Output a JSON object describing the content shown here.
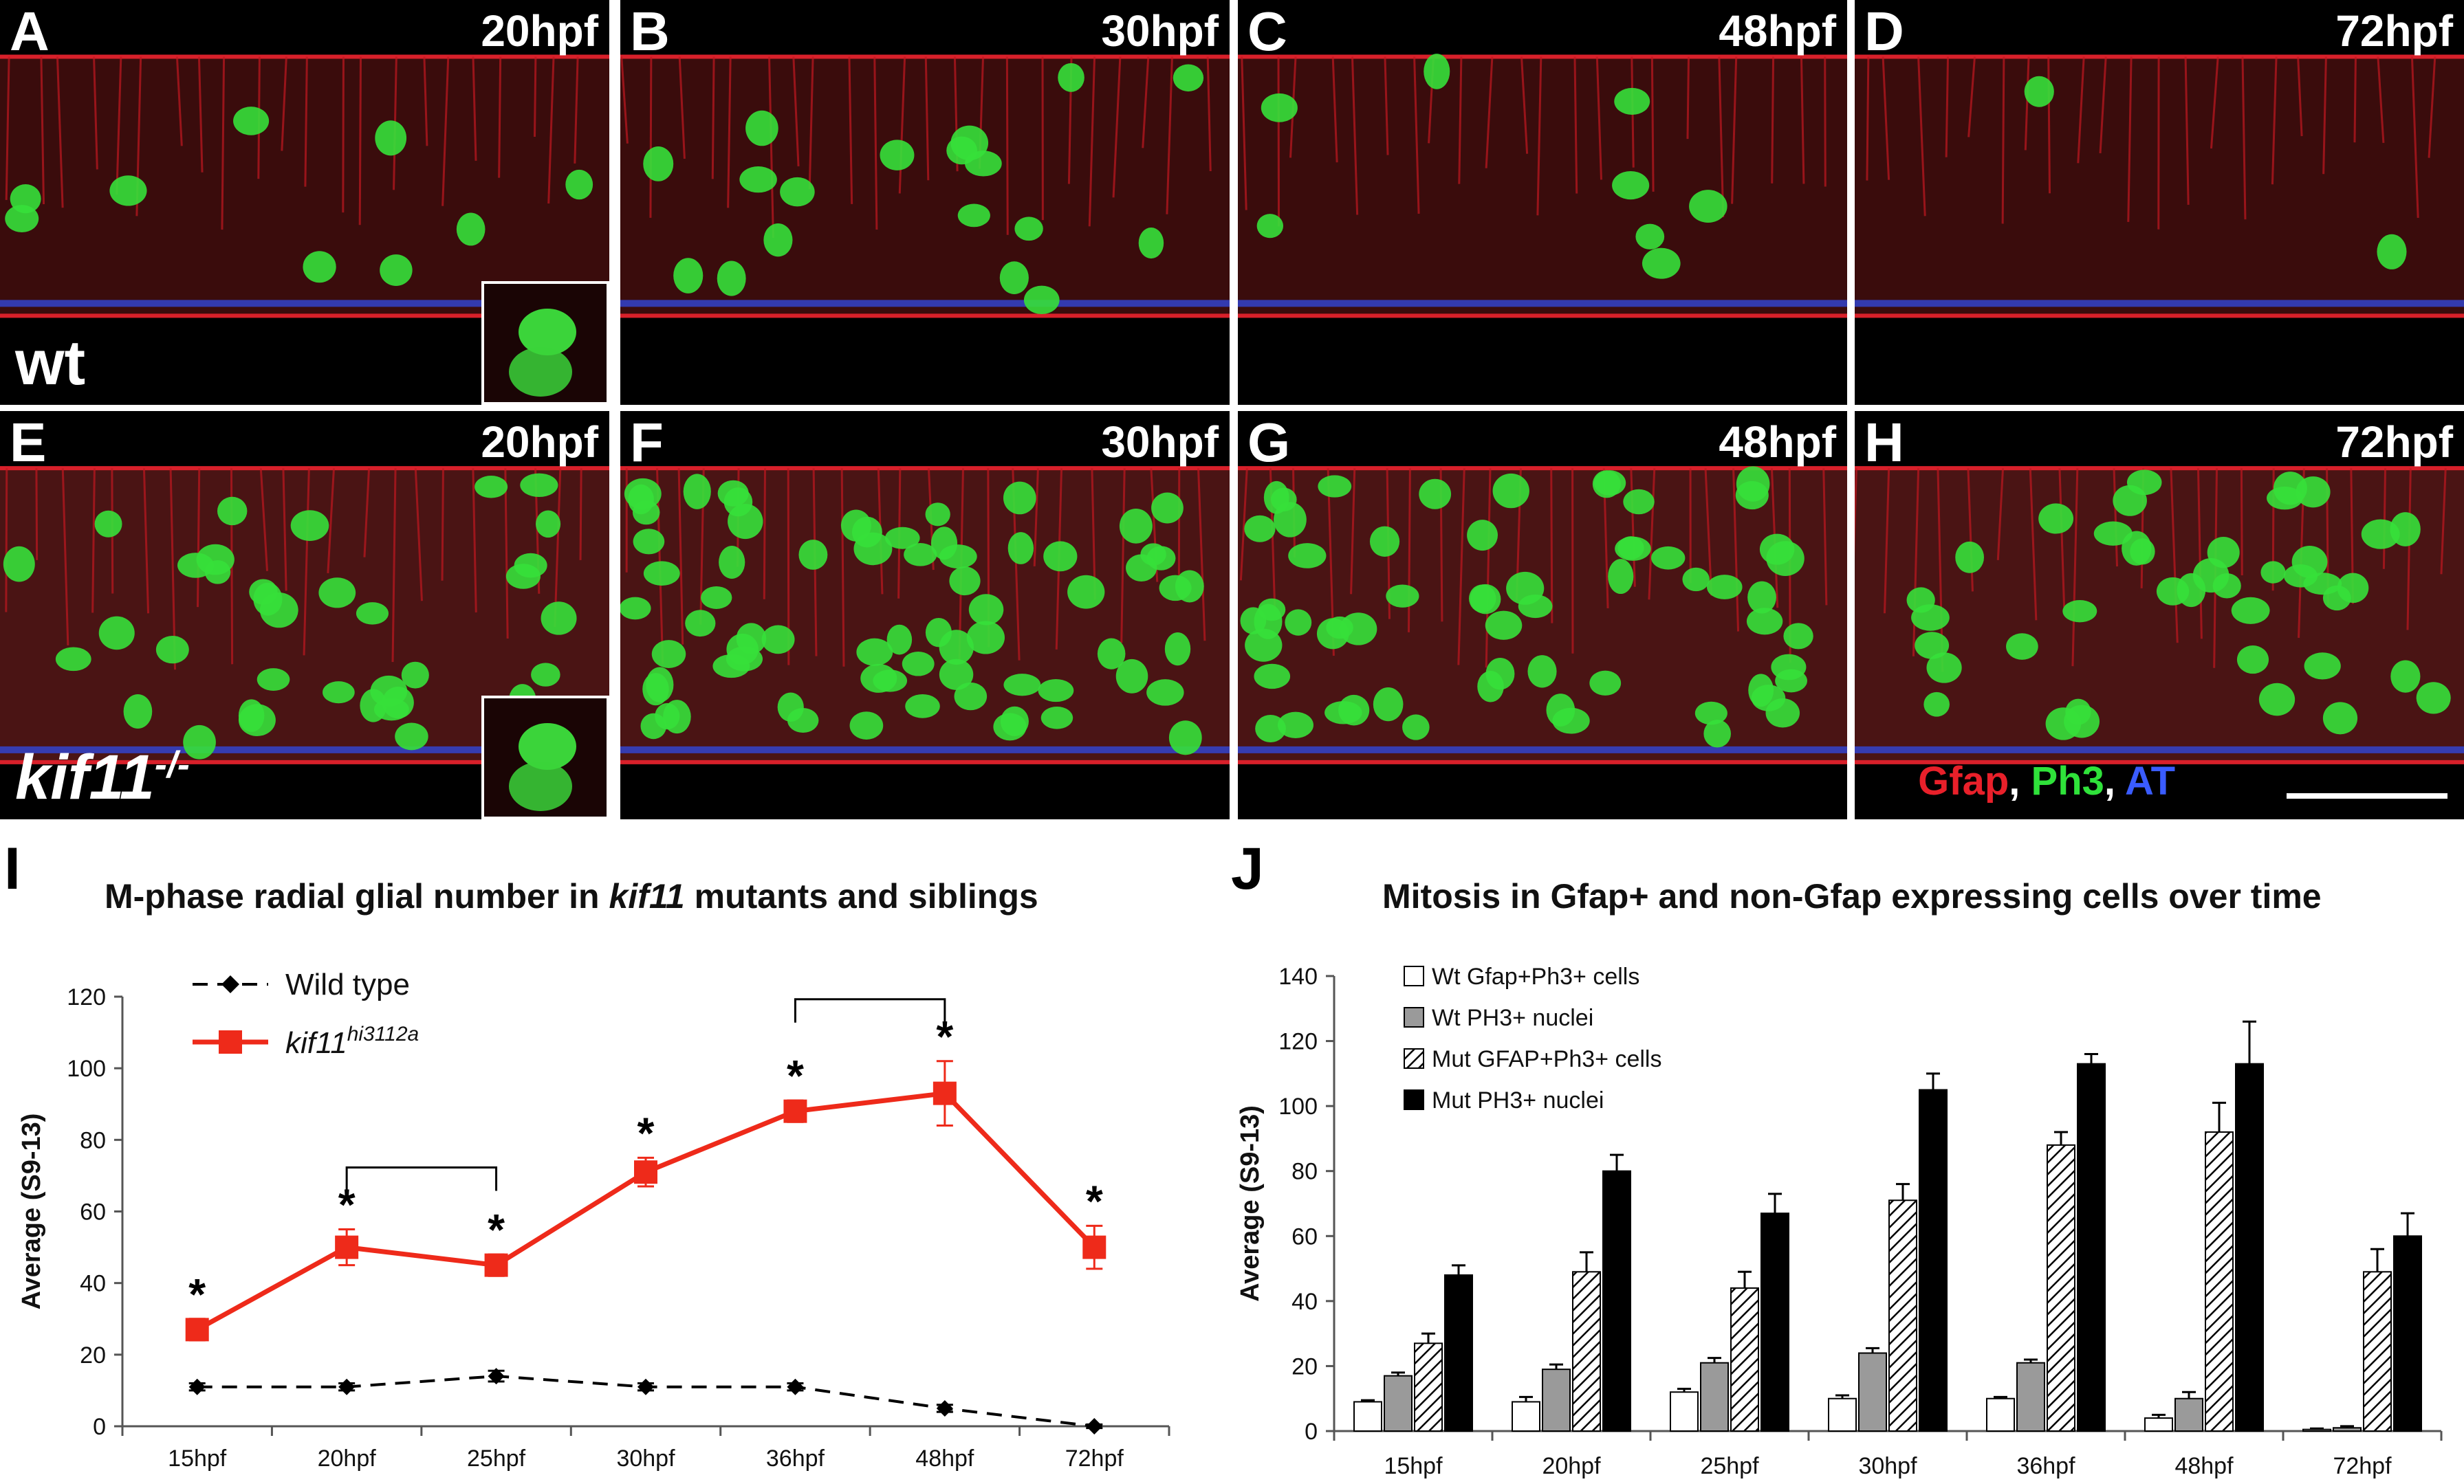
{
  "panels": [
    {
      "letter": "A",
      "time": "20hpf",
      "genotype": "wt",
      "inset": true
    },
    {
      "letter": "B",
      "time": "30hpf"
    },
    {
      "letter": "C",
      "time": "48hpf"
    },
    {
      "letter": "D",
      "time": "72hpf"
    },
    {
      "letter": "E",
      "time": "20hpf",
      "genotype": "kif11",
      "genotype_sup": "-/-",
      "inset": true
    },
    {
      "letter": "F",
      "time": "30hpf"
    },
    {
      "letter": "G",
      "time": "48hpf"
    },
    {
      "letter": "H",
      "time": "72hpf"
    }
  ],
  "stain_legend": {
    "gfap": "Gfap",
    "sep1": ", ",
    "ph3": "Ph3",
    "sep2": ", ",
    "at": "AT",
    "colors": {
      "gfap": "#e8202a",
      "ph3": "#2fe23a",
      "at": "#3a5cff"
    }
  },
  "chart_I": {
    "letter": "I",
    "title_pre": "M-phase radial glial number in ",
    "title_italic": "kif11",
    "title_post": " mutants and siblings"
  },
  "chart_J": {
    "letter": "J",
    "title": "Mitosis in Gfap+ and non-Gfap expressing cells over time"
  },
  "chart_data": [
    {
      "type": "line",
      "x": [
        "15hpf",
        "20hpf",
        "25hpf",
        "30hpf",
        "36hpf",
        "48hpf",
        "72hpf"
      ],
      "ylabel": "Average (S9-13)",
      "ylim": [
        0,
        120
      ],
      "yticks": [
        0,
        20,
        40,
        60,
        80,
        100,
        120
      ],
      "series": [
        {
          "name": "Wild type",
          "values": [
            11,
            11,
            14,
            11,
            11,
            5,
            0
          ],
          "errors": [
            1,
            1,
            1.5,
            1,
            1,
            1,
            0.5
          ],
          "color": "#000000",
          "style": "dashed",
          "marker": "diamond"
        },
        {
          "name": "kif11",
          "name_sup": "hi3112a",
          "values": [
            27,
            50,
            45,
            71,
            88,
            93,
            50
          ],
          "errors": [
            3,
            5,
            3,
            4,
            3,
            9,
            6
          ],
          "color": "#ee2a1a",
          "style": "solid",
          "marker": "square"
        }
      ],
      "significance_markers": [
        "*",
        "*",
        "*",
        "*",
        "*",
        "*",
        "*"
      ],
      "brackets": [
        [
          "20hpf",
          "25hpf"
        ],
        [
          "36hpf",
          "48hpf"
        ]
      ],
      "legend": "top-left"
    },
    {
      "type": "bar",
      "categories": [
        "15hpf",
        "20hpf",
        "25hpf",
        "30hpf",
        "36hpf",
        "48hpf",
        "72hpf"
      ],
      "ylabel": "Average (S9-13)",
      "ylim": [
        0,
        140
      ],
      "yticks": [
        0,
        20,
        40,
        60,
        80,
        100,
        120,
        140
      ],
      "series": [
        {
          "name": "Wt Gfap+Ph3+ cells",
          "values": [
            9,
            9,
            12,
            10,
            10,
            4,
            0.5
          ],
          "errors": [
            0.5,
            1.5,
            1,
            1,
            0.5,
            1,
            0.3
          ],
          "fill": "#ffffff"
        },
        {
          "name": "Wt PH3+ nuclei",
          "values": [
            17,
            19,
            21,
            24,
            21,
            10,
            1
          ],
          "errors": [
            1,
            1.5,
            1.5,
            1.5,
            1,
            2,
            0.5
          ],
          "fill": "#9a9a9a"
        },
        {
          "name": "Mut GFAP+Ph3+ cells",
          "values": [
            27,
            49,
            44,
            71,
            88,
            92,
            49
          ],
          "errors": [
            3,
            6,
            5,
            5,
            4,
            9,
            7
          ],
          "fill": "hatch"
        },
        {
          "name": "Mut PH3+ nuclei",
          "values": [
            48,
            80,
            67,
            105,
            113,
            113,
            60
          ],
          "errors": [
            3,
            5,
            6,
            5,
            3,
            13,
            7
          ],
          "fill": "#000000"
        }
      ],
      "legend": "top-left"
    }
  ]
}
